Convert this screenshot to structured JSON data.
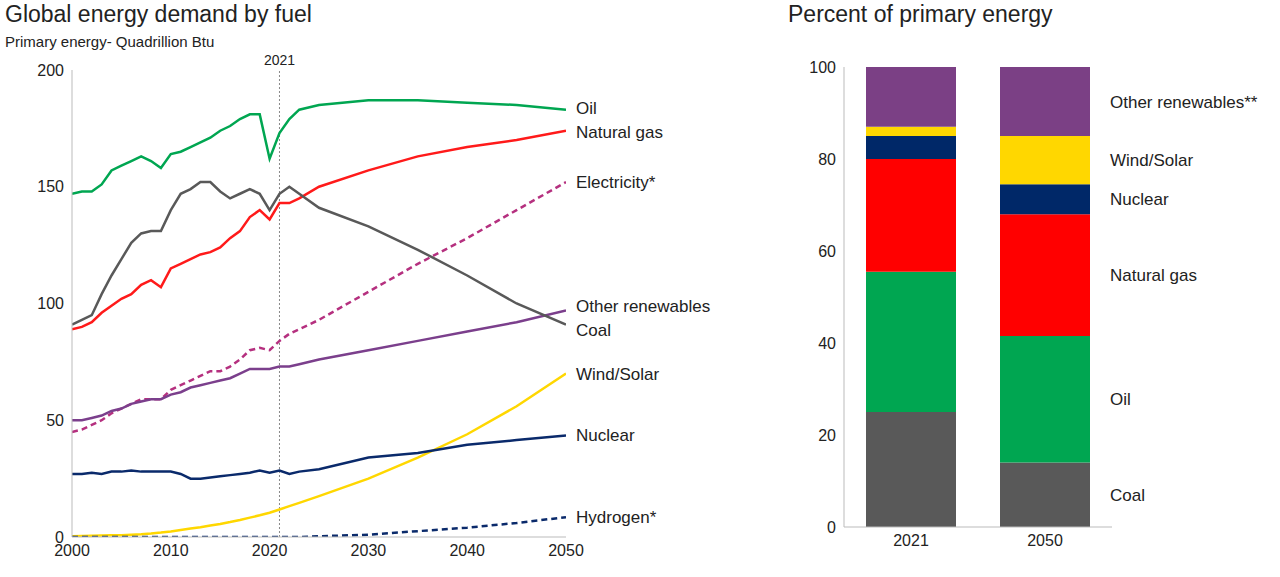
{
  "chart_data": [
    {
      "type": "line",
      "title": "Global energy demand by fuel",
      "subtitle": "Primary energy- Quadrillion Btu",
      "x": [
        2000,
        2001,
        2002,
        2003,
        2004,
        2005,
        2006,
        2007,
        2008,
        2009,
        2010,
        2011,
        2012,
        2013,
        2014,
        2015,
        2016,
        2017,
        2018,
        2019,
        2020,
        2021,
        2022,
        2023,
        2025,
        2030,
        2035,
        2040,
        2045,
        2050
      ],
      "xlim": [
        2000,
        2050
      ],
      "xticks": [
        2000,
        2010,
        2020,
        2030,
        2040,
        2050
      ],
      "ylim": [
        0,
        200
      ],
      "yticks": [
        0,
        50,
        100,
        150,
        200
      ],
      "grid": false,
      "annotations": [
        {
          "x": 2021,
          "text": "2021"
        }
      ],
      "series": [
        {
          "name": "Oil",
          "color": "#00a651",
          "line_style": "solid",
          "values": [
            147,
            148,
            148,
            151,
            157,
            159,
            161,
            163,
            161,
            158,
            164,
            165,
            167,
            169,
            171,
            174,
            176,
            179,
            181,
            181,
            162,
            173,
            179,
            183,
            185,
            187,
            187,
            186,
            185,
            183
          ]
        },
        {
          "name": "Natural gas",
          "color": "#ff1a1a",
          "line_style": "solid",
          "values": [
            89,
            90,
            92,
            96,
            99,
            102,
            104,
            108,
            110,
            107,
            115,
            117,
            119,
            121,
            122,
            124,
            128,
            131,
            137,
            140,
            136,
            143,
            143,
            145,
            150,
            157,
            163,
            167,
            170,
            174
          ]
        },
        {
          "name": "Electricity*",
          "color": "#b5307f",
          "line_style": "dashed",
          "values": [
            45,
            46,
            48,
            50,
            53,
            55,
            57,
            59,
            59,
            59,
            63,
            65,
            67,
            69,
            71,
            71,
            73,
            76,
            80,
            81,
            80,
            84,
            87,
            89,
            93,
            105,
            117,
            128,
            140,
            152
          ]
        },
        {
          "name": "Other renewables",
          "color": "#7b3f8c",
          "line_style": "solid",
          "values": [
            50,
            50,
            51,
            52,
            54,
            55,
            57,
            58,
            59,
            59,
            61,
            62,
            64,
            65,
            66,
            67,
            68,
            70,
            72,
            72,
            72,
            73,
            73,
            74,
            76,
            80,
            84,
            88,
            92,
            97
          ]
        },
        {
          "name": "Coal",
          "color": "#595959",
          "line_style": "solid",
          "values": [
            91,
            93,
            95,
            104,
            112,
            119,
            126,
            130,
            131,
            131,
            140,
            147,
            149,
            152,
            152,
            148,
            145,
            147,
            149,
            147,
            140,
            147,
            150,
            147,
            141,
            133,
            123,
            112,
            100,
            91
          ]
        },
        {
          "name": "Wind/Solar",
          "color": "#ffd700",
          "line_style": "solid",
          "values": [
            0.3,
            0.4,
            0.5,
            0.6,
            0.7,
            0.8,
            1,
            1.2,
            1.5,
            1.9,
            2.4,
            3,
            3.6,
            4.2,
            4.9,
            5.6,
            6.4,
            7.3,
            8.3,
            9.3,
            10.4,
            11.8,
            13.2,
            14.6,
            17.5,
            25,
            34,
            44,
            56,
            70
          ]
        },
        {
          "name": "Nuclear",
          "color": "#0a2a6b",
          "line_style": "solid",
          "values": [
            27,
            27,
            27.5,
            27,
            28,
            28,
            28.5,
            28,
            28,
            28,
            28,
            27,
            25,
            25,
            25.5,
            26,
            26.5,
            27,
            27.5,
            28.5,
            27.5,
            28.5,
            27,
            28,
            29,
            34,
            36,
            39.5,
            41.5,
            43.5
          ]
        },
        {
          "name": "Hydrogen*",
          "color": "#0a2a6b",
          "line_style": "dashed",
          "values": [
            0,
            0,
            0,
            0,
            0,
            0,
            0,
            0,
            0,
            0,
            0,
            0,
            0,
            0,
            0,
            0,
            0,
            0,
            0,
            0,
            0,
            0,
            0,
            0,
            0.3,
            1,
            2.5,
            4,
            6,
            8.5
          ]
        }
      ]
    },
    {
      "type": "bar",
      "title": "Percent of primary energy",
      "stacked": true,
      "categories": [
        "2021",
        "2050"
      ],
      "ylim": [
        0,
        100
      ],
      "yticks": [
        0,
        20,
        40,
        60,
        80,
        100
      ],
      "grid": false,
      "series": [
        {
          "name": "Coal",
          "color": "#595959",
          "values": [
            25,
            14
          ]
        },
        {
          "name": "Oil",
          "color": "#00a651",
          "values": [
            30.5,
            27.5
          ]
        },
        {
          "name": "Natural gas",
          "color": "#ff0000",
          "values": [
            24.5,
            26.5
          ]
        },
        {
          "name": "Nuclear",
          "color": "#002868",
          "values": [
            5,
            6.5
          ]
        },
        {
          "name": "Wind/Solar",
          "color": "#ffd700",
          "values": [
            2,
            10.5
          ]
        },
        {
          "name": "Other renewables**",
          "color": "#7b4085",
          "values": [
            13,
            15
          ]
        }
      ]
    }
  ]
}
